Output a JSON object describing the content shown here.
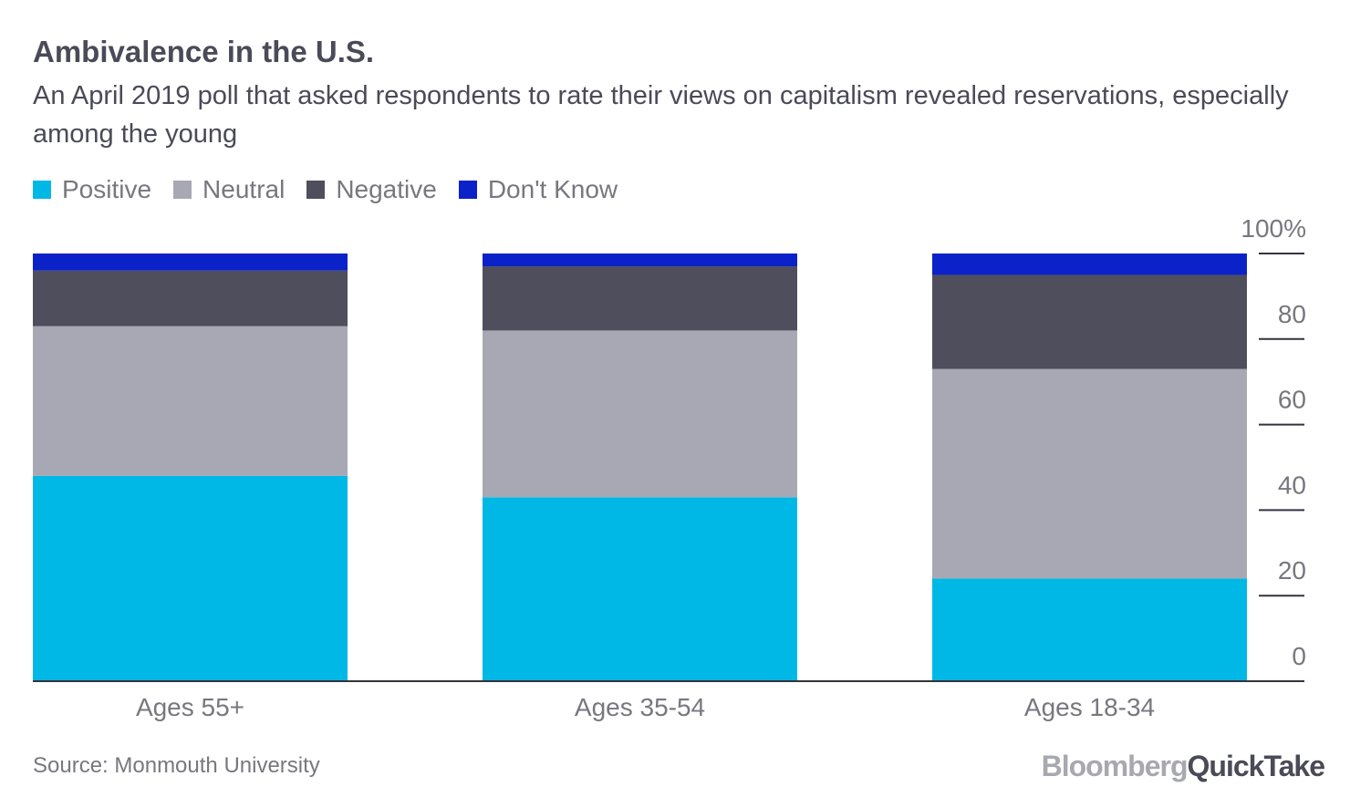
{
  "title": "Ambivalence in the U.S.",
  "subtitle": "An April 2019 poll that asked respondents to rate their views on capitalism revealed reservations, especially among the young",
  "source": "Source: Monmouth University",
  "logo": {
    "part1": "Bloomberg",
    "part2": "QuickTake"
  },
  "colors": {
    "positive": "#00b8e6",
    "neutral": "#a8a8b4",
    "negative": "#4f4e5c",
    "dont_know": "#0a22c8",
    "text": "#4a4a58",
    "muted": "#77777f"
  },
  "chart_data": {
    "type": "bar",
    "stacked": true,
    "categories": [
      "Ages 55+",
      "Ages 35-54",
      "Ages 18-34"
    ],
    "series": [
      {
        "name": "Positive",
        "color": "#00b8e6",
        "values": [
          48,
          43,
          24
        ]
      },
      {
        "name": "Neutral",
        "color": "#a8a8b4",
        "values": [
          35,
          39,
          49
        ]
      },
      {
        "name": "Negative",
        "color": "#4f4e5c",
        "values": [
          13,
          15,
          22
        ]
      },
      {
        "name": "Don't Know",
        "color": "#0a22c8",
        "values": [
          4,
          3,
          5
        ]
      }
    ],
    "y_ticks": [
      "0",
      "20",
      "40",
      "60",
      "80",
      "100%"
    ],
    "ylim": [
      0,
      100
    ],
    "legend_position": "top-left",
    "grid": false
  }
}
